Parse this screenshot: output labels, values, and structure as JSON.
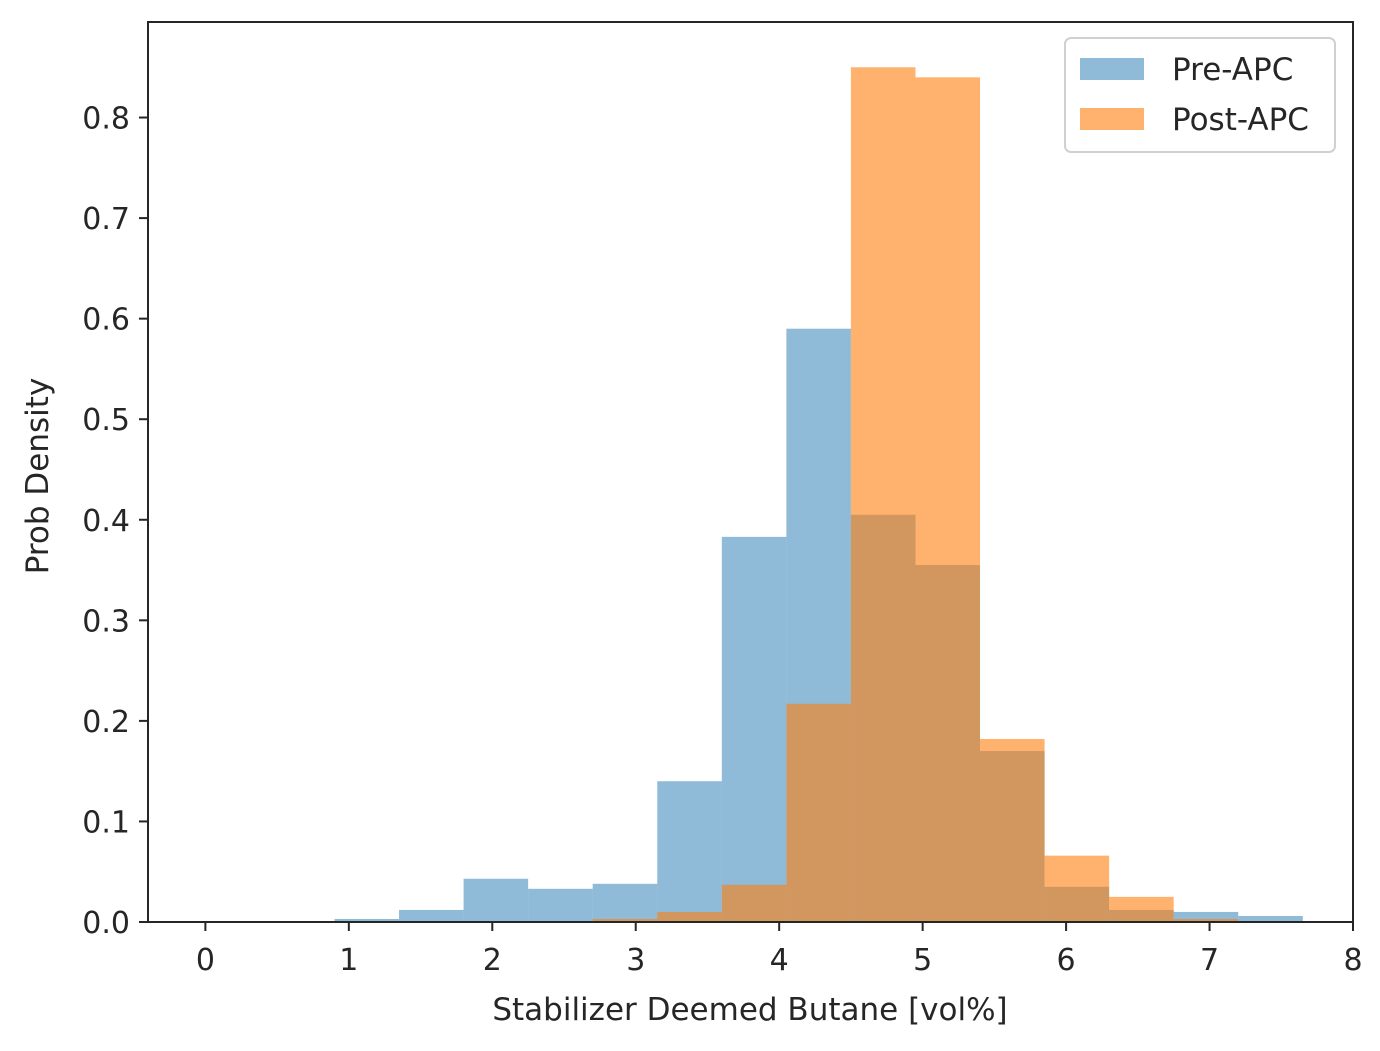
{
  "chart_data": {
    "type": "histogram",
    "xlabel": "Stabilizer Deemed Butane [vol%]",
    "ylabel": "Prob Density",
    "xlim": [
      -0.4,
      8.0
    ],
    "ylim": [
      0,
      0.895
    ],
    "xticks": [
      0,
      1,
      2,
      3,
      4,
      5,
      6,
      7,
      8
    ],
    "yticks": [
      0.0,
      0.1,
      0.2,
      0.3,
      0.4,
      0.5,
      0.6,
      0.7,
      0.8
    ],
    "ytick_labels": [
      "0.0",
      "0.1",
      "0.2",
      "0.3",
      "0.4",
      "0.5",
      "0.6",
      "0.7",
      "0.8"
    ],
    "legend_position": "top-right",
    "grid": false,
    "series": [
      {
        "name": "Pre-APC",
        "color": "#1f77b4",
        "alpha": 0.5,
        "bin_edges": [
          0.9,
          1.35,
          1.8,
          2.25,
          2.7,
          3.15,
          3.6,
          4.05,
          4.5,
          4.95,
          5.4,
          5.85,
          6.3,
          6.75,
          7.2,
          7.65
        ],
        "values": [
          0.003,
          0.012,
          0.043,
          0.033,
          0.038,
          0.14,
          0.383,
          0.59,
          0.405,
          0.355,
          0.17,
          0.035,
          0.012,
          0.01,
          0.006
        ]
      },
      {
        "name": "Post-APC",
        "color": "#ff7f0e",
        "alpha": 0.6,
        "bin_edges": [
          2.7,
          3.15,
          3.6,
          4.05,
          4.5,
          4.95,
          5.4,
          5.85,
          6.3,
          6.75,
          7.2
        ],
        "values": [
          0.003,
          0.01,
          0.037,
          0.217,
          0.85,
          0.84,
          0.182,
          0.066,
          0.025,
          0.003
        ]
      }
    ]
  }
}
